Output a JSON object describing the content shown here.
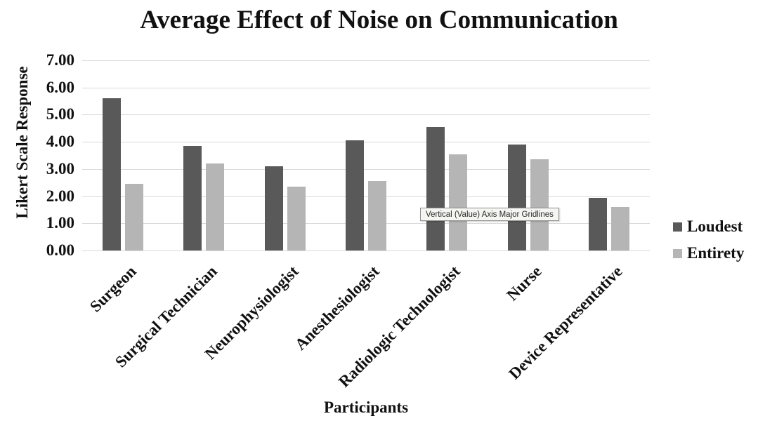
{
  "chart_data": {
    "type": "bar",
    "title": "Average Effect of Noise on Communication",
    "xlabel": "Participants",
    "ylabel": "Likert Scale Response",
    "categories": [
      "Surgeon",
      "Surgical Technician",
      "Neurophysiologist",
      "Anesthesiologist",
      "Radiologic Technologist",
      "Nurse",
      "Device Representative"
    ],
    "series": [
      {
        "name": "Loudest",
        "color": "#595959",
        "values": [
          5.6,
          3.85,
          3.1,
          4.05,
          4.55,
          3.9,
          1.95
        ]
      },
      {
        "name": "Entirety",
        "color": "#b5b5b5",
        "values": [
          2.45,
          3.2,
          2.35,
          2.55,
          3.55,
          3.35,
          1.6
        ]
      }
    ],
    "ylim": [
      0,
      7
    ],
    "ytick_step": 1,
    "ytick_labels": [
      "0.00",
      "1.00",
      "2.00",
      "3.00",
      "4.00",
      "5.00",
      "6.00",
      "7.00"
    ],
    "grid": true,
    "gridline_color": "#d9d9d9",
    "legend_position": "right",
    "category_label_rotation_deg": -45
  },
  "tooltip": {
    "text": "Vertical (Value) Axis Major Gridlines"
  }
}
